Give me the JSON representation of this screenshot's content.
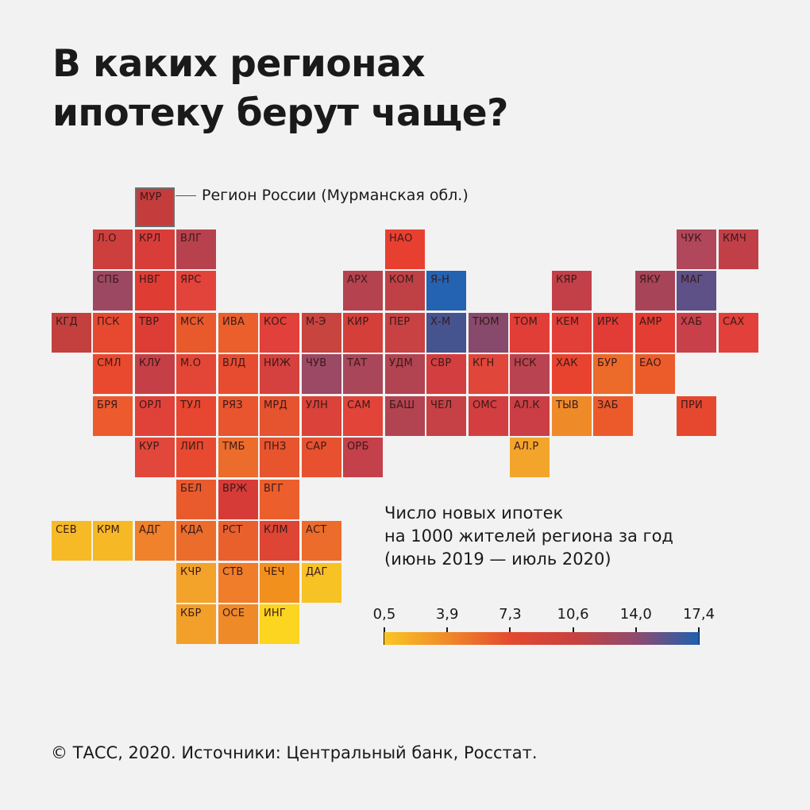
{
  "title": {
    "line1": "В каких регионах",
    "line2": "ипотеку берут чаще?"
  },
  "callout": "Регион России (Мурманская обл.)",
  "legend": {
    "line1": "Число новых ипотек",
    "line2": "на 1000 жителей региона за год",
    "line3": "(июнь 2019 — июль 2020)",
    "ticks": [
      "0,5",
      "3,9",
      "7,3",
      "10,6",
      "14,0",
      "17,4"
    ],
    "tick_values": [
      0.5,
      3.9,
      7.3,
      10.6,
      14.0,
      17.4
    ],
    "colors": [
      "#f9c623",
      "#f08a2a",
      "#e34a2f",
      "#c8423f",
      "#8f4a6e",
      "#1f5fae"
    ]
  },
  "footer": "© ТАСС, 2020. Источники: Центральный банк, Росстат.",
  "map": {
    "highlight": "МУР",
    "cells": [
      {
        "code": "МУР",
        "col": 3,
        "row": 0,
        "color": "#c43c3c"
      },
      {
        "code": "Л.О",
        "col": 2,
        "row": 1,
        "color": "#cd3f3c"
      },
      {
        "code": "КРЛ",
        "col": 3,
        "row": 1,
        "color": "#d83d3a"
      },
      {
        "code": "ВЛГ",
        "col": 4,
        "row": 1,
        "color": "#b7424e"
      },
      {
        "code": "НАО",
        "col": 9,
        "row": 1,
        "color": "#e84030"
      },
      {
        "code": "ЧУК",
        "col": 16,
        "row": 1,
        "color": "#b0475a"
      },
      {
        "code": "КМЧ",
        "col": 17,
        "row": 1,
        "color": "#c13f47"
      },
      {
        "code": "СПБ",
        "col": 2,
        "row": 2,
        "color": "#9d4863"
      },
      {
        "code": "НВГ",
        "col": 3,
        "row": 2,
        "color": "#df3d34"
      },
      {
        "code": "ЯРС",
        "col": 4,
        "row": 2,
        "color": "#e2433a"
      },
      {
        "code": "АРХ",
        "col": 8,
        "row": 2,
        "color": "#b4434f"
      },
      {
        "code": "КОМ",
        "col": 9,
        "row": 2,
        "color": "#bf4146"
      },
      {
        "code": "Я-Н",
        "col": 10,
        "row": 2,
        "color": "#2462b2"
      },
      {
        "code": "КЯР",
        "col": 13,
        "row": 2,
        "color": "#c34049"
      },
      {
        "code": "ЯКУ",
        "col": 15,
        "row": 2,
        "color": "#a84458"
      },
      {
        "code": "МАГ",
        "col": 16,
        "row": 2,
        "color": "#5d5187"
      },
      {
        "code": "КГД",
        "col": 1,
        "row": 3,
        "color": "#c3403f"
      },
      {
        "code": "ПСК",
        "col": 2,
        "row": 3,
        "color": "#e6492f"
      },
      {
        "code": "ТВР",
        "col": 3,
        "row": 3,
        "color": "#de3d35"
      },
      {
        "code": "МСК",
        "col": 4,
        "row": 3,
        "color": "#e8592c"
      },
      {
        "code": "ИВА",
        "col": 5,
        "row": 3,
        "color": "#ea5f2c"
      },
      {
        "code": "КОС",
        "col": 6,
        "row": 3,
        "color": "#e2403a"
      },
      {
        "code": "М-Э",
        "col": 7,
        "row": 3,
        "color": "#c8443f"
      },
      {
        "code": "КИР",
        "col": 8,
        "row": 3,
        "color": "#d43f3a"
      },
      {
        "code": "ПЕР",
        "col": 9,
        "row": 3,
        "color": "#c84243"
      },
      {
        "code": "Х-М",
        "col": 10,
        "row": 3,
        "color": "#45538f"
      },
      {
        "code": "ТЮМ",
        "col": 11,
        "row": 3,
        "color": "#884a6c"
      },
      {
        "code": "ТОМ",
        "col": 12,
        "row": 3,
        "color": "#e13e37"
      },
      {
        "code": "КЕМ",
        "col": 13,
        "row": 3,
        "color": "#e23f38"
      },
      {
        "code": "ИРК",
        "col": 14,
        "row": 3,
        "color": "#e33c36"
      },
      {
        "code": "АМР",
        "col": 15,
        "row": 3,
        "color": "#e33d34"
      },
      {
        "code": "ХАБ",
        "col": 16,
        "row": 3,
        "color": "#c8414a"
      },
      {
        "code": "САХ",
        "col": 17,
        "row": 3,
        "color": "#e2403a"
      },
      {
        "code": "СМЛ",
        "col": 2,
        "row": 4,
        "color": "#e94a2f"
      },
      {
        "code": "КЛУ",
        "col": 3,
        "row": 4,
        "color": "#c54046"
      },
      {
        "code": "М.О",
        "col": 4,
        "row": 4,
        "color": "#e34637"
      },
      {
        "code": "ВЛД",
        "col": 5,
        "row": 4,
        "color": "#e74c30"
      },
      {
        "code": "НИЖ",
        "col": 6,
        "row": 4,
        "color": "#d5413e"
      },
      {
        "code": "ЧУВ",
        "col": 7,
        "row": 4,
        "color": "#9b4965"
      },
      {
        "code": "ТАТ",
        "col": 8,
        "row": 4,
        "color": "#a9465a"
      },
      {
        "code": "УДМ",
        "col": 9,
        "row": 4,
        "color": "#b24452"
      },
      {
        "code": "СВР",
        "col": 10,
        "row": 4,
        "color": "#d33f40"
      },
      {
        "code": "КГН",
        "col": 11,
        "row": 4,
        "color": "#e0463a"
      },
      {
        "code": "НСК",
        "col": 12,
        "row": 4,
        "color": "#b94350"
      },
      {
        "code": "ХАК",
        "col": 13,
        "row": 4,
        "color": "#e8432f"
      },
      {
        "code": "БУР",
        "col": 14,
        "row": 4,
        "color": "#ec6a2a"
      },
      {
        "code": "ЕАО",
        "col": 15,
        "row": 4,
        "color": "#ec5c2b"
      },
      {
        "code": "БРЯ",
        "col": 2,
        "row": 5,
        "color": "#ec5a2d"
      },
      {
        "code": "ОРЛ",
        "col": 3,
        "row": 5,
        "color": "#e0423a"
      },
      {
        "code": "ТУЛ",
        "col": 4,
        "row": 5,
        "color": "#e74630"
      },
      {
        "code": "РЯЗ",
        "col": 5,
        "row": 5,
        "color": "#e8552e"
      },
      {
        "code": "МРД",
        "col": 6,
        "row": 5,
        "color": "#e6532f"
      },
      {
        "code": "УЛН",
        "col": 7,
        "row": 5,
        "color": "#db4239"
      },
      {
        "code": "САМ",
        "col": 8,
        "row": 5,
        "color": "#e2443a"
      },
      {
        "code": "БАШ",
        "col": 9,
        "row": 5,
        "color": "#b24452"
      },
      {
        "code": "ЧЕЛ",
        "col": 10,
        "row": 5,
        "color": "#c54145"
      },
      {
        "code": "ОМС",
        "col": 11,
        "row": 5,
        "color": "#d33f40"
      },
      {
        "code": "АЛ.К",
        "col": 12,
        "row": 5,
        "color": "#cb3e45"
      },
      {
        "code": "ТЫВ",
        "col": 13,
        "row": 5,
        "color": "#ef8a29"
      },
      {
        "code": "ЗАБ",
        "col": 14,
        "row": 5,
        "color": "#ec5a2c"
      },
      {
        "code": "ПРИ",
        "col": 16,
        "row": 5,
        "color": "#e6482f"
      },
      {
        "code": "КУР",
        "col": 3,
        "row": 6,
        "color": "#e1473a"
      },
      {
        "code": "ЛИП",
        "col": 4,
        "row": 6,
        "color": "#e74a30"
      },
      {
        "code": "ТМБ",
        "col": 5,
        "row": 6,
        "color": "#ec6c2b"
      },
      {
        "code": "ПНЗ",
        "col": 6,
        "row": 6,
        "color": "#e8542e"
      },
      {
        "code": "САР",
        "col": 7,
        "row": 6,
        "color": "#e7512f"
      },
      {
        "code": "ОРБ",
        "col": 8,
        "row": 6,
        "color": "#c4404a"
      },
      {
        "code": "АЛ.Р",
        "col": 12,
        "row": 6,
        "color": "#f3a52b"
      },
      {
        "code": "БЕЛ",
        "col": 4,
        "row": 7,
        "color": "#e95a2d"
      },
      {
        "code": "ВРЖ",
        "col": 5,
        "row": 7,
        "color": "#d73b38"
      },
      {
        "code": "ВГГ",
        "col": 6,
        "row": 7,
        "color": "#ec5e2c"
      },
      {
        "code": "СЕВ",
        "col": 1,
        "row": 8,
        "color": "#f6ba27"
      },
      {
        "code": "КРМ",
        "col": 2,
        "row": 8,
        "color": "#f7b826"
      },
      {
        "code": "АДГ",
        "col": 3,
        "row": 8,
        "color": "#ef822a"
      },
      {
        "code": "КДА",
        "col": 4,
        "row": 8,
        "color": "#ec6c2b"
      },
      {
        "code": "РСТ",
        "col": 5,
        "row": 8,
        "color": "#e9602d"
      },
      {
        "code": "КЛМ",
        "col": 6,
        "row": 8,
        "color": "#de4534"
      },
      {
        "code": "АСТ",
        "col": 7,
        "row": 8,
        "color": "#ec6c2b"
      },
      {
        "code": "КЧР",
        "col": 4,
        "row": 9,
        "color": "#f3a22a"
      },
      {
        "code": "СТВ",
        "col": 5,
        "row": 9,
        "color": "#ef7d2a"
      },
      {
        "code": "ЧЕЧ",
        "col": 6,
        "row": 9,
        "color": "#f2901e"
      },
      {
        "code": "ДАГ",
        "col": 7,
        "row": 9,
        "color": "#f7c224"
      },
      {
        "code": "КБР",
        "col": 4,
        "row": 10,
        "color": "#f2a02a"
      },
      {
        "code": "ОСЕ",
        "col": 5,
        "row": 10,
        "color": "#ef8a29"
      },
      {
        "code": "ИНГ",
        "col": 6,
        "row": 10,
        "color": "#fbd51f"
      }
    ]
  }
}
